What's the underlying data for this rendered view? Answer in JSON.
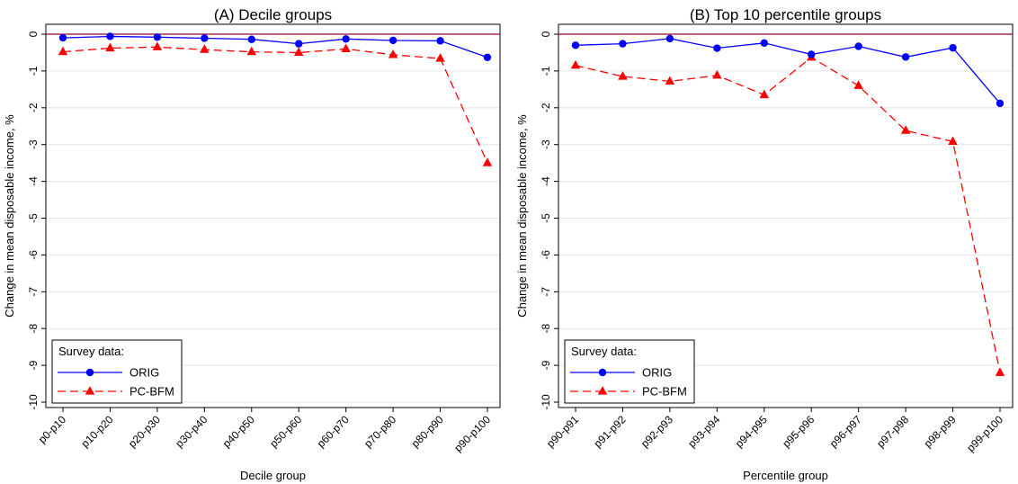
{
  "colors": {
    "orig": "#0000ff",
    "pcbfm": "#ff0000",
    "zero_line": "#990033",
    "grid": "#e6e6e6",
    "axis": "#000000"
  },
  "chart_data": [
    {
      "type": "line",
      "title": "(A) Decile groups",
      "xlabel": "Decile group",
      "ylabel": "Change in mean disposable income, %",
      "ylim": [
        -10,
        0
      ],
      "yticks": [
        "0",
        "-1",
        "-2",
        "-3",
        "-4",
        "-5",
        "-6",
        "-7",
        "-8",
        "-9",
        "-10"
      ],
      "grid": true,
      "reference_line_y": 0,
      "categories": [
        "p0-p10",
        "p10-p20",
        "p20-p30",
        "p30-p40",
        "p40-p50",
        "p50-p60",
        "p60-p70",
        "p70-p80",
        "p80-p90",
        "p90-p100"
      ],
      "series": [
        {
          "name": "ORIG",
          "marker": "circle",
          "dash": "solid",
          "values": [
            -0.1,
            -0.06,
            -0.08,
            -0.11,
            -0.14,
            -0.26,
            -0.13,
            -0.17,
            -0.18,
            -0.63
          ]
        },
        {
          "name": "PC-BFM",
          "marker": "triangle",
          "dash": "dashed",
          "values": [
            -0.48,
            -0.38,
            -0.35,
            -0.42,
            -0.48,
            -0.5,
            -0.4,
            -0.56,
            -0.66,
            -3.5
          ]
        }
      ],
      "legend": {
        "title": "Survey data:",
        "position": "bottom-left"
      }
    },
    {
      "type": "line",
      "title": "(B) Top 10 percentile groups",
      "xlabel": "Percentile group",
      "ylabel": "Change in mean disposable income, %",
      "ylim": [
        -10,
        0
      ],
      "yticks": [
        "0",
        "-1",
        "-2",
        "-3",
        "-4",
        "-5",
        "-6",
        "-7",
        "-8",
        "-9",
        "-10"
      ],
      "grid": true,
      "reference_line_y": 0,
      "categories": [
        "p90-p91",
        "p91-p92",
        "p92-p93",
        "p93-p94",
        "p94-p95",
        "p95-p96",
        "p96-p97",
        "p97-p98",
        "p98-p99",
        "p99-p100"
      ],
      "series": [
        {
          "name": "ORIG",
          "marker": "circle",
          "dash": "solid",
          "values": [
            -0.3,
            -0.26,
            -0.12,
            -0.38,
            -0.24,
            -0.55,
            -0.33,
            -0.62,
            -0.37,
            -1.88
          ]
        },
        {
          "name": "PC-BFM",
          "marker": "triangle",
          "dash": "dashed",
          "values": [
            -0.85,
            -1.15,
            -1.28,
            -1.12,
            -1.65,
            -0.63,
            -1.4,
            -2.62,
            -2.92,
            -9.2
          ]
        }
      ],
      "legend": {
        "title": "Survey data:",
        "position": "bottom-left"
      }
    }
  ]
}
